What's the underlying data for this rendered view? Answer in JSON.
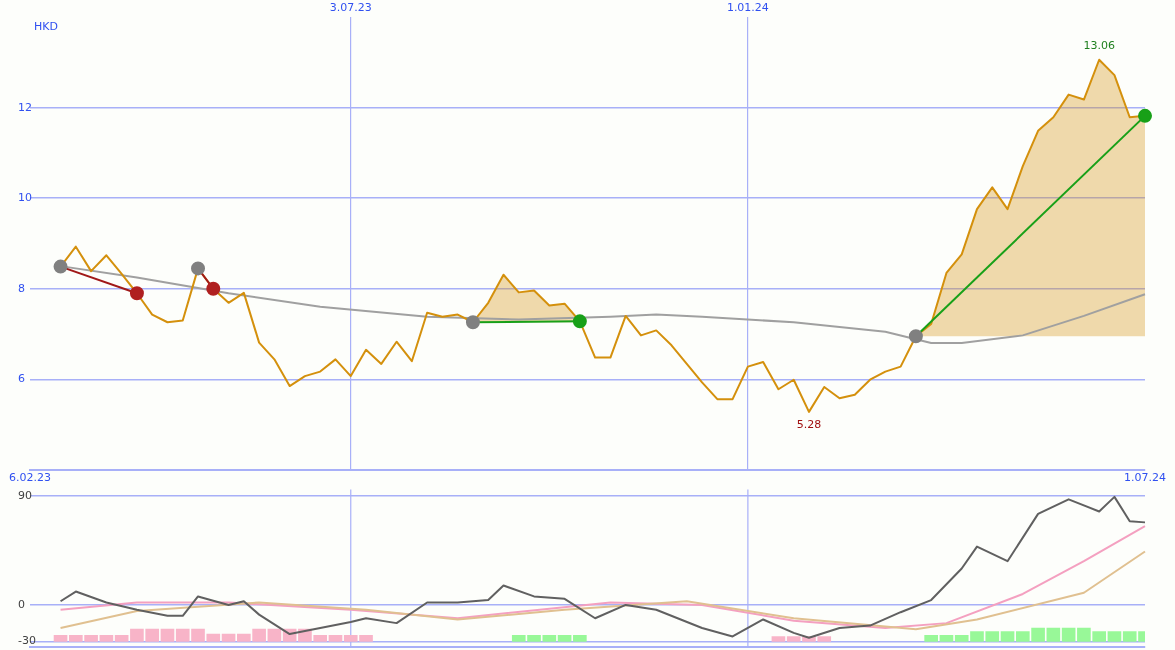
{
  "chart_data": [
    {
      "type": "line",
      "ylabel": "HKD",
      "x": [
        "2023-02-20",
        "2023-02-27",
        "2023-03-06",
        "2023-03-13",
        "2023-03-20",
        "2023-03-27",
        "2023-04-03",
        "2023-04-10",
        "2023-04-17",
        "2023-04-24",
        "2023-05-01",
        "2023-05-08",
        "2023-05-15",
        "2023-05-22",
        "2023-05-29",
        "2023-06-05",
        "2023-06-12",
        "2023-06-19",
        "2023-06-26",
        "2023-07-03",
        "2023-07-10",
        "2023-07-17",
        "2023-07-24",
        "2023-07-31",
        "2023-08-07",
        "2023-08-14",
        "2023-08-21",
        "2023-08-28",
        "2023-09-04",
        "2023-09-11",
        "2023-09-18",
        "2023-09-25",
        "2023-10-02",
        "2023-10-09",
        "2023-10-16",
        "2023-10-23",
        "2023-10-30",
        "2023-11-06",
        "2023-11-13",
        "2023-11-20",
        "2023-11-27",
        "2023-12-04",
        "2023-12-11",
        "2023-12-18",
        "2023-12-25",
        "2024-01-01",
        "2024-01-08",
        "2024-01-15",
        "2024-01-22",
        "2024-01-29",
        "2024-02-05",
        "2024-02-12",
        "2024-02-19",
        "2024-02-26",
        "2024-03-04",
        "2024-03-11",
        "2024-03-18",
        "2024-03-25",
        "2024-04-01",
        "2024-04-08",
        "2024-04-15",
        "2024-04-22",
        "2024-04-29",
        "2024-05-06",
        "2024-05-13",
        "2024-05-20",
        "2024-05-27",
        "2024-06-03",
        "2024-06-10",
        "2024-06-17",
        "2024-06-24",
        "2024-07-01"
      ],
      "series": [
        {
          "color": "#a0a0a0",
          "x": [
            "2023-02-20",
            "2023-03-27",
            "2023-05-08",
            "2023-06-19",
            "2023-08-07",
            "2023-09-18",
            "2023-10-30",
            "2023-11-20",
            "2023-12-11",
            "2024-01-22",
            "2024-03-04",
            "2024-03-25",
            "2024-04-08",
            "2024-05-06",
            "2024-06-03",
            "2024-07-01"
          ],
          "values": [
            8.5,
            8.25,
            7.9,
            7.6,
            7.38,
            7.32,
            7.38,
            7.43,
            7.38,
            7.26,
            7.05,
            6.8,
            6.8,
            6.97,
            7.4,
            7.88
          ]
        },
        {
          "color": "#d4900c",
          "lower": [
            null,
            null,
            null,
            null,
            null,
            null,
            null,
            null,
            null,
            null,
            null,
            null,
            null,
            null,
            null,
            null,
            null,
            null,
            null,
            null,
            null,
            null,
            null,
            null,
            null,
            null,
            null,
            7.26,
            7.26,
            7.26,
            7.26,
            7.26,
            7.26,
            7.26,
            7.26,
            null,
            null,
            null,
            null,
            null,
            null,
            null,
            null,
            null,
            null,
            null,
            null,
            null,
            null,
            null,
            null,
            null,
            null,
            null,
            null,
            null,
            6.95,
            6.95,
            6.95,
            6.95,
            6.95,
            6.95,
            6.95,
            6.95,
            6.95,
            6.95,
            6.95,
            6.95,
            6.95,
            6.95,
            6.95,
            6.95
          ],
          "upper": [
            null,
            null,
            null,
            null,
            null,
            null,
            null,
            null,
            null,
            null,
            null,
            null,
            null,
            null,
            null,
            null,
            null,
            null,
            null,
            null,
            null,
            null,
            null,
            null,
            null,
            null,
            null,
            7.26,
            7.69,
            8.31,
            7.92,
            7.96,
            7.63,
            7.67,
            7.28,
            null,
            null,
            null,
            null,
            null,
            null,
            null,
            null,
            null,
            null,
            null,
            null,
            null,
            null,
            null,
            null,
            null,
            null,
            null,
            null,
            null,
            6.95,
            7.22,
            8.35,
            8.76,
            9.76,
            10.24,
            9.76,
            10.71,
            11.49,
            11.79,
            12.29,
            12.18,
            13.06,
            12.72,
            11.79,
            11.82
          ],
          "values": [
            8.49,
            8.93,
            8.39,
            8.74,
            8.33,
            7.9,
            7.43,
            7.26,
            7.3,
            8.45,
            8.0,
            7.69,
            7.91,
            6.81,
            6.44,
            5.85,
            6.07,
            6.17,
            6.44,
            6.07,
            6.65,
            6.34,
            6.83,
            6.4,
            7.47,
            7.38,
            7.43,
            7.26,
            7.69,
            8.31,
            7.92,
            7.96,
            7.63,
            7.67,
            7.28,
            6.48,
            6.48,
            7.4,
            6.97,
            7.08,
            6.75,
            6.34,
            5.93,
            5.56,
            5.56,
            6.28,
            6.38,
            5.78,
            5.99,
            5.28,
            5.83,
            5.58,
            5.66,
            5.99,
            6.17,
            6.28,
            6.95,
            7.22,
            8.35,
            8.76,
            9.76,
            10.24,
            9.76,
            10.71,
            11.49,
            11.79,
            12.29,
            12.18,
            13.06,
            12.72,
            11.79,
            11.82
          ],
          "value_labels": [
            null,
            null,
            null,
            null,
            null,
            null,
            null,
            null,
            null,
            null,
            null,
            null,
            null,
            null,
            null,
            null,
            null,
            null,
            null,
            null,
            null,
            null,
            null,
            null,
            null,
            null,
            null,
            null,
            null,
            null,
            null,
            null,
            null,
            null,
            null,
            null,
            null,
            null,
            null,
            null,
            null,
            null,
            null,
            null,
            null,
            null,
            null,
            null,
            null,
            "5.28",
            null,
            null,
            null,
            null,
            null,
            null,
            null,
            null,
            null,
            null,
            null,
            null,
            null,
            null,
            null,
            null,
            null,
            null,
            "13.06",
            null,
            null,
            null
          ]
        },
        {
          "color": "#a01818",
          "marker": "circle",
          "x": [
            "2023-02-20",
            "2023-03-27"
          ],
          "values": [
            8.49,
            7.9
          ],
          "colors": [
            "#808080",
            "#b02020"
          ]
        },
        {
          "color": "#a01818",
          "marker": "circle",
          "x": [
            "2023-04-24",
            "2023-05-01"
          ],
          "values": [
            8.45,
            8.0
          ],
          "colors": [
            "#808080",
            "#b02020"
          ]
        },
        {
          "color": "#18a018",
          "marker": "circle",
          "x": [
            "2023-08-28",
            "2023-10-16"
          ],
          "values": [
            7.26,
            7.28
          ],
          "colors": [
            "#808080",
            "#18a018"
          ]
        },
        {
          "color": "#18a018",
          "marker": "circle",
          "x": [
            "2024-03-18",
            "2024-07-01"
          ],
          "values": [
            6.95,
            11.82
          ],
          "colors": [
            "#808080",
            "#18a018"
          ]
        }
      ],
      "xlim": [
        "2023-02-06",
        "2024-07-01"
      ],
      "xticks": [
        {
          "value": "2023-02-06",
          "label": "6.02.23"
        },
        {
          "value": "2024-07-01",
          "label": "1.07.24"
        }
      ],
      "x2lim": [
        "2023-02-06",
        "2024-07-01"
      ],
      "x2ticks": [
        {
          "value": "2023-07-03",
          "label": "3.07.23"
        },
        {
          "value": "2024-01-01",
          "label": "1.01.24"
        }
      ],
      "ylim": [
        4,
        14
      ],
      "yticks": [
        6,
        8,
        10,
        12
      ],
      "grid": true,
      "legend": false
    },
    {
      "type": "line",
      "series": [
        {
          "type": "bar",
          "colors": [
            "#f8b4c8",
            "#f8b4c8",
            "#f8b4c8",
            "#f8b4c8",
            "#f8b4c8",
            "#f8b4c8",
            "#f8b4c8",
            "#f8b4c8",
            "#f8b4c8",
            "#f8b4c8",
            "#f8b4c8",
            "#f8b4c8",
            "#f8b4c8",
            "#f8b4c8",
            "#f8b4c8",
            "#f8b4c8",
            "#f8b4c8",
            "#f8b4c8",
            "#f8b4c8",
            "#f8b4c8",
            "#f8b4c8",
            "#98f898",
            "#98f898",
            "#98f898",
            "#98f898",
            "#98f898",
            "#f8b4c8",
            "#f8b4c8",
            "#f8b4c8",
            "#f8b4c8",
            "#98f898",
            "#98f898",
            "#98f898",
            "#98f898",
            "#98f898",
            "#98f898",
            "#98f898",
            "#98f898",
            "#98f898",
            "#98f898",
            "#98f898",
            "#98f898",
            "#98f898",
            "#98f898",
            "#98f898"
          ],
          "x": [
            "2023-02-20",
            "2023-02-27",
            "2023-03-06",
            "2023-03-13",
            "2023-03-20",
            "2023-03-27",
            "2023-04-03",
            "2023-04-10",
            "2023-04-17",
            "2023-04-24",
            "2023-05-01",
            "2023-05-08",
            "2023-05-15",
            "2023-05-22",
            "2023-05-29",
            "2023-06-05",
            "2023-06-12",
            "2023-06-19",
            "2023-06-26",
            "2023-07-03",
            "2023-07-10",
            "2023-09-18",
            "2023-09-25",
            "2023-10-02",
            "2023-10-09",
            "2023-10-16",
            "2024-01-15",
            "2024-01-22",
            "2024-01-29",
            "2024-02-05",
            "2024-03-25",
            "2024-04-01",
            "2024-04-08",
            "2024-04-15",
            "2024-04-22",
            "2024-04-29",
            "2024-05-06",
            "2024-05-13",
            "2024-05-20",
            "2024-05-27",
            "2024-06-03",
            "2024-06-10",
            "2024-06-17",
            "2024-06-24",
            "2024-07-01"
          ],
          "values": [
            5,
            5,
            5,
            5,
            5,
            10,
            10,
            10,
            10,
            10,
            6,
            6,
            6,
            10,
            10,
            10,
            10,
            5,
            5,
            5,
            5,
            5,
            5,
            5,
            5,
            5,
            4,
            4,
            4,
            4,
            5,
            5,
            5,
            8,
            8,
            8,
            8,
            11,
            11,
            11,
            11,
            8,
            8,
            8,
            8
          ],
          "base": [
            -30,
            -30,
            -30,
            -30,
            -30,
            -30,
            -30,
            -30,
            -30,
            -30,
            -30,
            -30,
            -30,
            -30,
            -30,
            -30,
            -30,
            -30,
            -30,
            -30,
            -30,
            -30,
            -30,
            -30,
            -30,
            -30,
            -30,
            -30,
            -30,
            -30,
            -30,
            -30,
            -30,
            -30,
            -30,
            -30,
            -30,
            -30,
            -30,
            -30,
            -30,
            -30,
            -30,
            -30,
            -30
          ]
        },
        {
          "color": "#f4a0c0",
          "x": [
            "2023-02-20",
            "2023-03-27",
            "2023-05-08",
            "2023-07-03",
            "2023-08-21",
            "2023-10-30",
            "2023-12-11",
            "2024-01-22",
            "2024-03-04",
            "2024-04-01",
            "2024-05-06",
            "2024-06-03",
            "2024-07-01"
          ],
          "values": [
            -4,
            2,
            2,
            -4,
            -11,
            2,
            0,
            -13,
            -19,
            -15,
            9,
            36,
            65
          ]
        },
        {
          "color": "#e0c090",
          "x": [
            "2023-02-20",
            "2023-03-27",
            "2023-05-22",
            "2023-07-10",
            "2023-08-21",
            "2023-10-09",
            "2023-12-04",
            "2024-01-22",
            "2024-03-18",
            "2024-04-15",
            "2024-06-03",
            "2024-07-01"
          ],
          "values": [
            -19,
            -5,
            2,
            -4,
            -12,
            -4,
            3,
            -11,
            -20,
            -12,
            10,
            44
          ]
        },
        {
          "color": "#606060",
          "x": [
            "2023-02-20",
            "2023-02-27",
            "2023-03-13",
            "2023-03-27",
            "2023-04-10",
            "2023-04-17",
            "2023-04-24",
            "2023-05-08",
            "2023-05-15",
            "2023-05-22",
            "2023-06-05",
            "2023-06-19",
            "2023-07-03",
            "2023-07-10",
            "2023-07-24",
            "2023-08-07",
            "2023-08-21",
            "2023-09-04",
            "2023-09-11",
            "2023-09-25",
            "2023-10-09",
            "2023-10-23",
            "2023-11-06",
            "2023-11-20",
            "2023-12-11",
            "2023-12-25",
            "2024-01-08",
            "2024-01-22",
            "2024-01-29",
            "2024-02-12",
            "2024-02-26",
            "2024-03-11",
            "2024-03-25",
            "2024-04-08",
            "2024-04-15",
            "2024-04-29",
            "2024-05-13",
            "2024-05-27",
            "2024-06-10",
            "2024-06-17",
            "2024-06-24",
            "2024-07-01"
          ],
          "values": [
            3,
            11,
            2,
            -4,
            -9,
            -9,
            7,
            0,
            3,
            -8,
            -24,
            -19,
            -14,
            -11,
            -15,
            2,
            2,
            4,
            16,
            7,
            5,
            -11,
            0,
            -4,
            -19,
            -26,
            -12,
            -23,
            -27,
            -19,
            -17,
            -6,
            4,
            30,
            48,
            36,
            75,
            87,
            77,
            89,
            69,
            68
          ]
        }
      ],
      "xlim": [
        "2023-02-06",
        "2024-07-01"
      ],
      "ref_lines": [
        {
          "axis": "x",
          "value": "2023-07-03",
          "color": "#a8b0f8"
        },
        {
          "axis": "x",
          "value": "2024-01-01",
          "color": "#a8b0f8"
        }
      ],
      "ylim": [
        -35,
        95
      ],
      "yticks": [
        90,
        0,
        -30
      ],
      "grid": true,
      "legend": false,
      "tick_labels": "y"
    }
  ]
}
